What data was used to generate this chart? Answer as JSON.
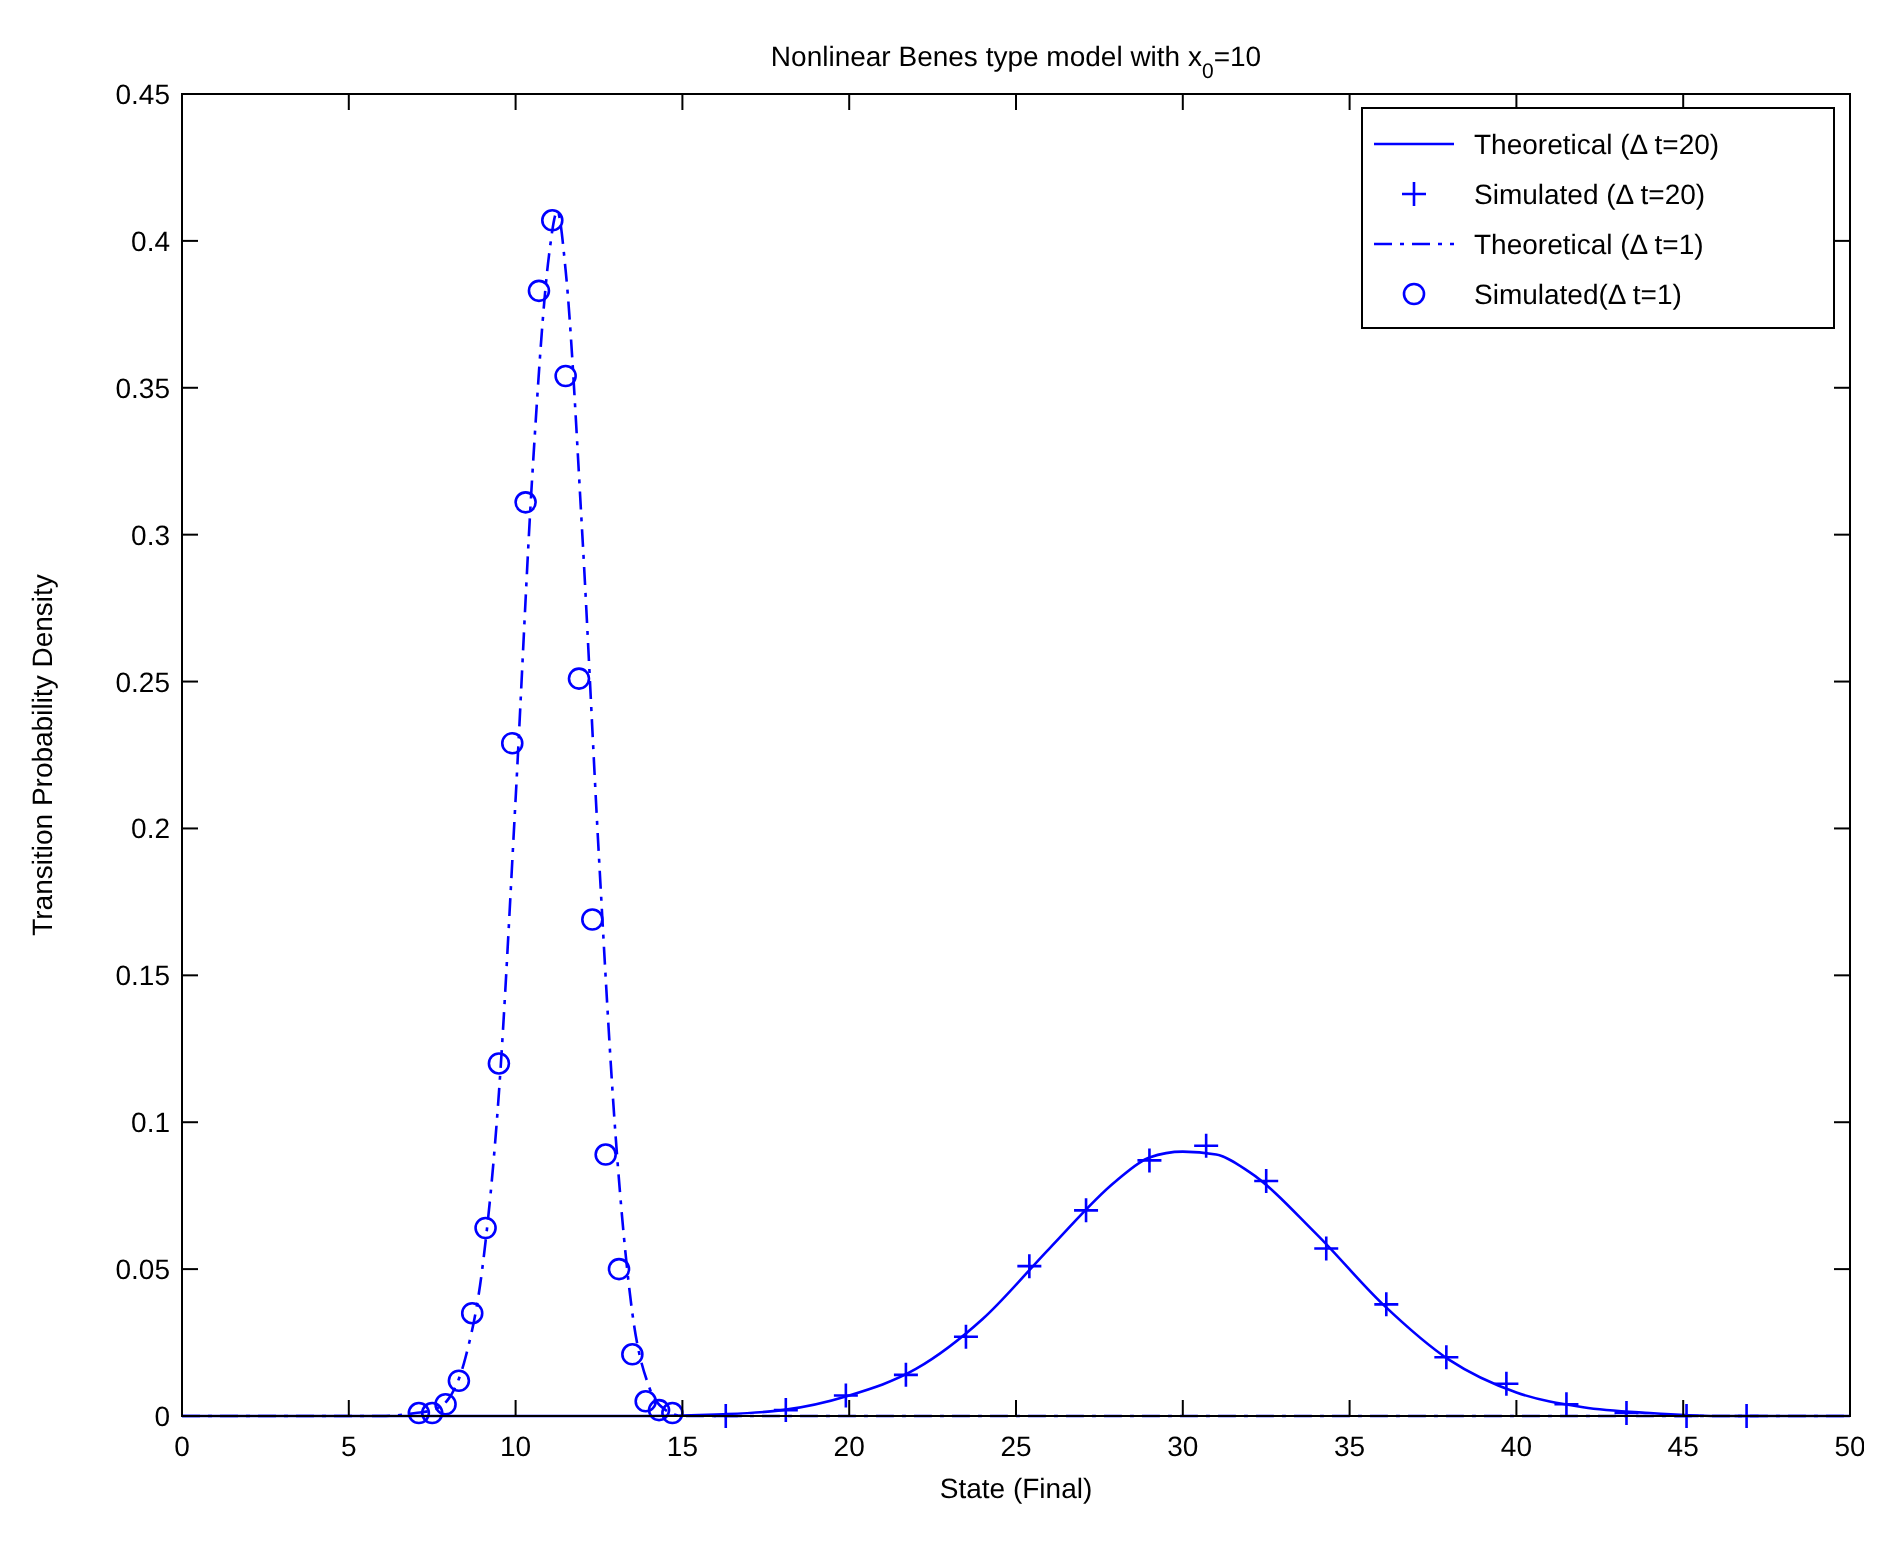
{
  "chart_data": {
    "type": "line",
    "title": "Nonlinear Benes type model  with x$_{0}$=10",
    "xlabel": "State (Final)",
    "ylabel": "Transition Probability Density",
    "xlim": [
      0,
      50
    ],
    "ylim": [
      0,
      0.45
    ],
    "xticks": [
      0,
      5,
      10,
      15,
      20,
      25,
      30,
      35,
      40,
      45,
      50
    ],
    "yticks": [
      0,
      0.05,
      0.1,
      0.15,
      0.2,
      0.25,
      0.3,
      0.35,
      0.4,
      0.45
    ],
    "grid": false,
    "legend": "top right",
    "series": [
      {
        "name": "Theoretical (Δ t=20)",
        "line_style": "solid",
        "marker": "none",
        "color": "#0000ff",
        "x": [
          0,
          14,
          16,
          18,
          20,
          22,
          24,
          26,
          28,
          29,
          30,
          31,
          32,
          34,
          36,
          38,
          40,
          42,
          44,
          46,
          50
        ],
        "values": [
          0,
          0,
          0.0005,
          0.002,
          0.007,
          0.016,
          0.033,
          0.057,
          0.08,
          0.088,
          0.09,
          0.089,
          0.083,
          0.062,
          0.038,
          0.019,
          0.008,
          0.003,
          0.001,
          0,
          0
        ]
      },
      {
        "name": "Simulated (Δ t=20)",
        "type": "scatter",
        "marker": "cross",
        "color": "#0000ff",
        "x": [
          16.3,
          18.1,
          19.9,
          21.7,
          23.5,
          25.4,
          27.1,
          29.0,
          30.7,
          32.5,
          34.3,
          36.1,
          37.9,
          39.7,
          41.5,
          43.3,
          45.1,
          46.9
        ],
        "values": [
          0,
          0.002,
          0.007,
          0.014,
          0.027,
          0.051,
          0.07,
          0.087,
          0.092,
          0.08,
          0.057,
          0.038,
          0.02,
          0.011,
          0.004,
          0.001,
          0,
          0
        ]
      },
      {
        "name": "Theoretical (Δ t=1)",
        "line_style": "dashdot",
        "marker": "none",
        "color": "#0000ff",
        "x": [
          0,
          6,
          7,
          7.5,
          8,
          8.5,
          9,
          9.5,
          10,
          10.5,
          11,
          11.25,
          11.5,
          12,
          12.5,
          13,
          13.5,
          14,
          14.5,
          15,
          16,
          50
        ],
        "values": [
          0,
          0,
          0.001,
          0.002,
          0.006,
          0.02,
          0.05,
          0.11,
          0.21,
          0.32,
          0.395,
          0.41,
          0.39,
          0.3,
          0.19,
          0.095,
          0.035,
          0.01,
          0.002,
          0,
          0,
          0
        ]
      },
      {
        "name": "Simulated(Δ t=1)",
        "type": "scatter",
        "marker": "circle",
        "color": "#0000ff",
        "x": [
          7.1,
          7.5,
          7.9,
          8.3,
          8.7,
          9.1,
          9.5,
          9.9,
          10.3,
          10.7,
          11.1,
          11.5,
          11.9,
          12.3,
          12.7,
          13.1,
          13.5,
          13.9,
          14.3,
          14.7
        ],
        "values": [
          0.001,
          0.001,
          0.004,
          0.012,
          0.035,
          0.064,
          0.12,
          0.229,
          0.311,
          0.383,
          0.407,
          0.354,
          0.251,
          0.169,
          0.089,
          0.05,
          0.021,
          0.005,
          0.002,
          0.001
        ]
      }
    ]
  }
}
